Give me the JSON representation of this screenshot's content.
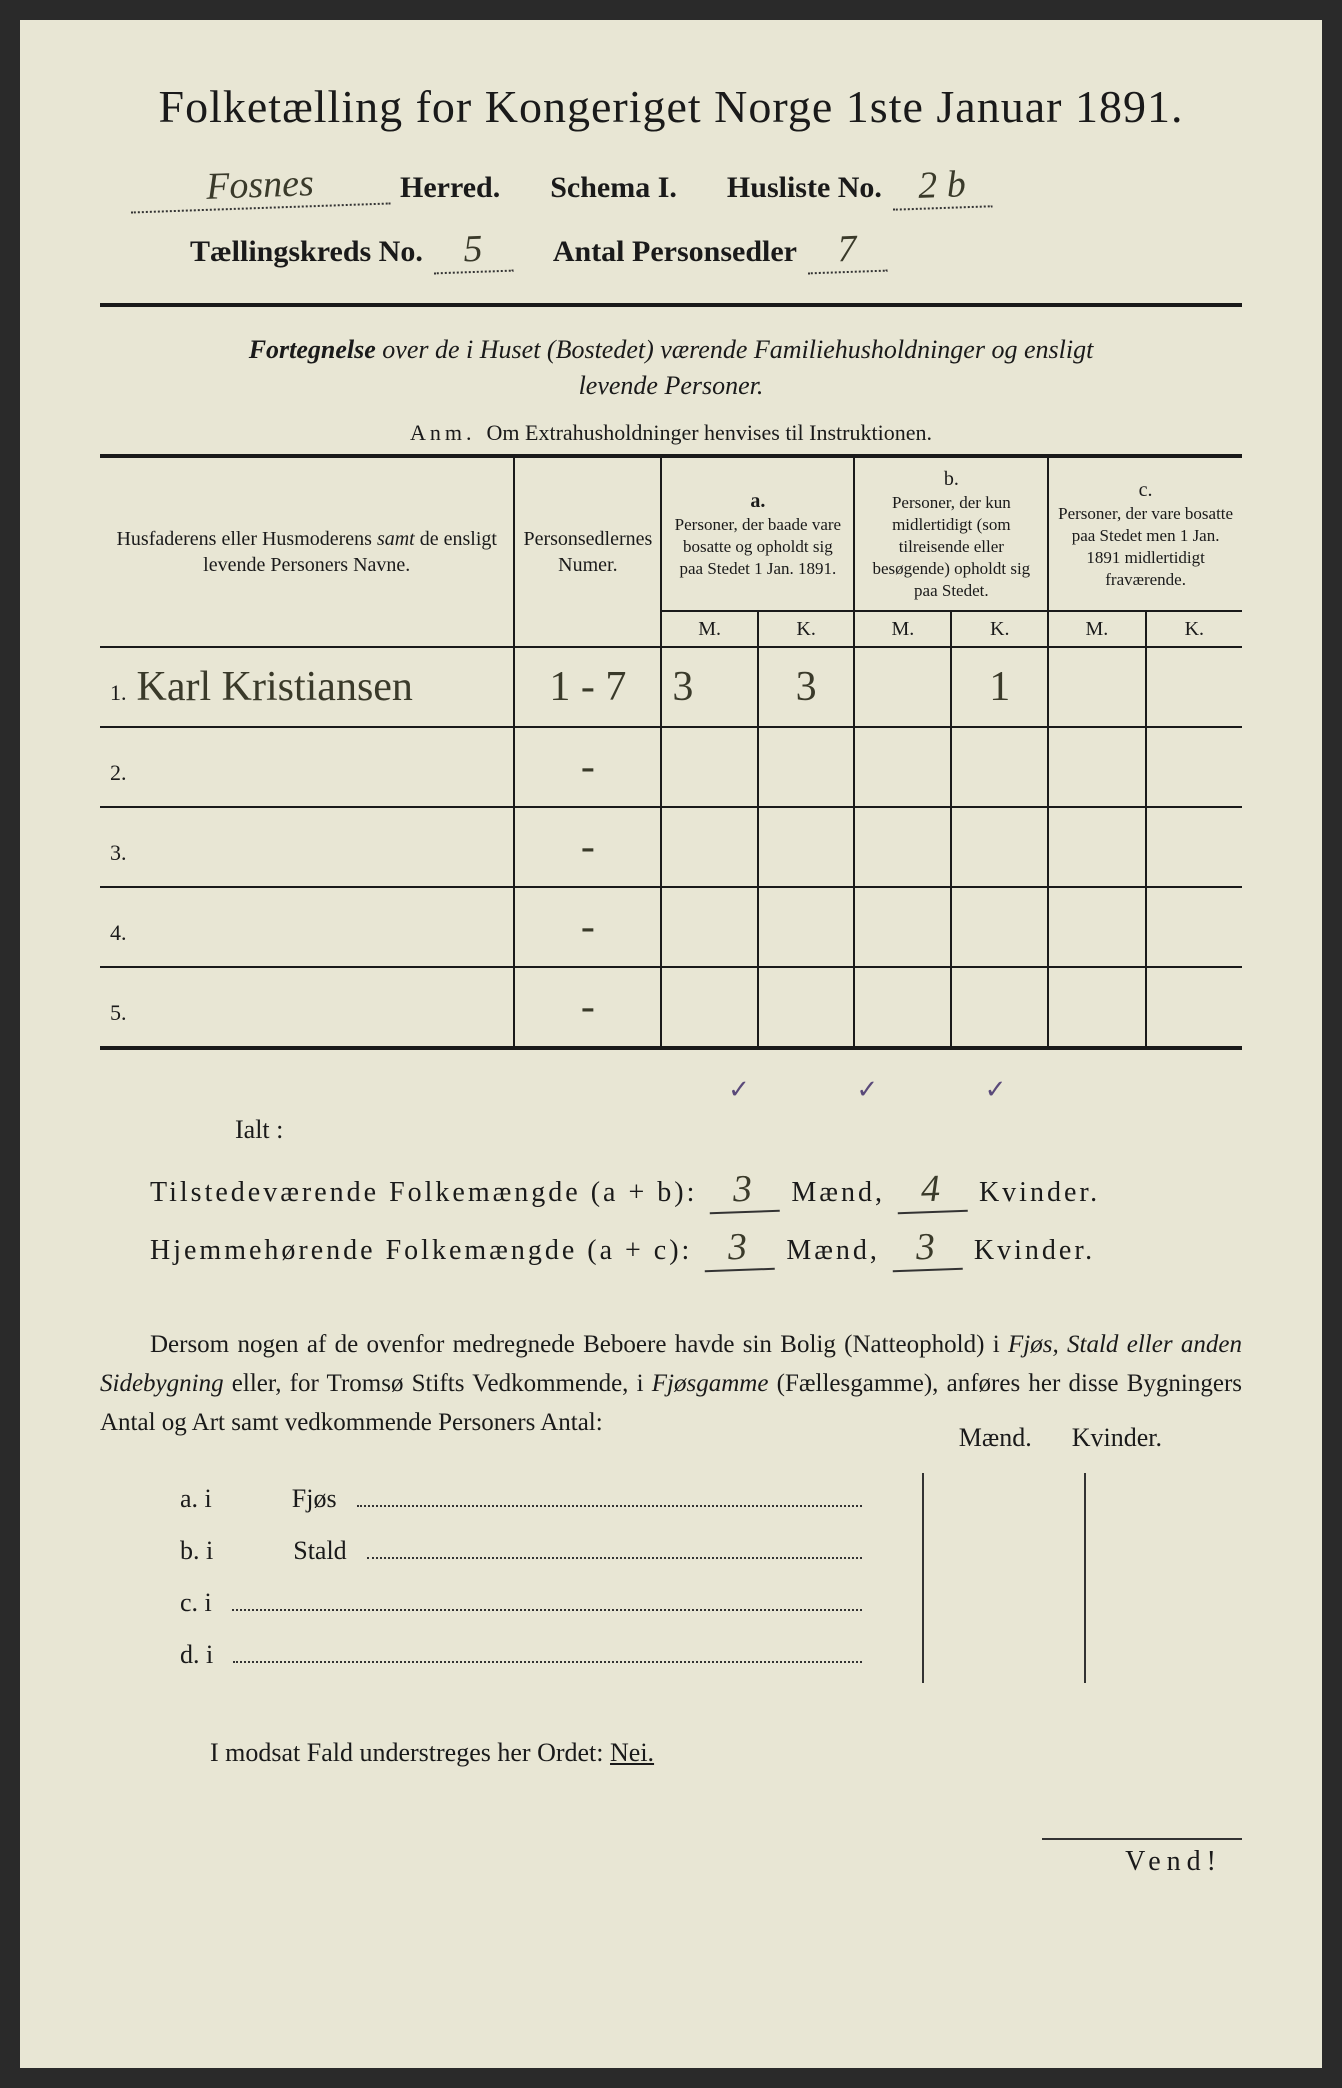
{
  "title": "Folketælling for Kongeriget Norge 1ste Januar 1891.",
  "header": {
    "herred_value": "Fosnes",
    "herred_label": "Herred.",
    "schema_label": "Schema I.",
    "husliste_label": "Husliste No.",
    "husliste_value": "2 b",
    "kreds_label": "Tællingskreds No.",
    "kreds_value": "5",
    "antal_label": "Antal Personsedler",
    "antal_value": "7"
  },
  "subtitle": "Fortegnelse over de i Huset (Bostedet) værende Familiehusholdninger og ensligt levende Personer.",
  "anm_label": "Anm.",
  "anm_text": "Om Extrahusholdninger henvises til Instruktionen.",
  "table": {
    "col1": "Husfaderens eller Husmoderens samt de ensligt levende Personers Navne.",
    "col2": "Personsedlernes Numer.",
    "col_a_label": "a.",
    "col_a": "Personer, der baade vare bosatte og opholdt sig paa Stedet 1 Jan. 1891.",
    "col_b_label": "b.",
    "col_b": "Personer, der kun midlertidigt (som tilreisende eller besøgende) opholdt sig paa Stedet.",
    "col_c_label": "c.",
    "col_c": "Personer, der vare bosatte paa Stedet men 1 Jan. 1891 midlertidigt fraværende.",
    "m": "M.",
    "k": "K.",
    "rows": [
      {
        "n": "1.",
        "name": "Karl Kristiansen",
        "num": "1 - 7",
        "am": "3",
        "ak": "3",
        "bm": "",
        "bk": "1",
        "cm": "",
        "ck": ""
      },
      {
        "n": "2.",
        "name": "",
        "num": "-",
        "am": "",
        "ak": "",
        "bm": "",
        "bk": "",
        "cm": "",
        "ck": ""
      },
      {
        "n": "3.",
        "name": "",
        "num": "-",
        "am": "",
        "ak": "",
        "bm": "",
        "bk": "",
        "cm": "",
        "ck": ""
      },
      {
        "n": "4.",
        "name": "",
        "num": "-",
        "am": "",
        "ak": "",
        "bm": "",
        "bk": "",
        "cm": "",
        "ck": ""
      },
      {
        "n": "5.",
        "name": "",
        "num": "-",
        "am": "",
        "ak": "",
        "bm": "",
        "bk": "",
        "cm": "",
        "ck": ""
      }
    ]
  },
  "ialt": "Ialt :",
  "summary": {
    "line1_label": "Tilstedeværende Folkemængde (a + b):",
    "line1_m": "3",
    "line1_k": "4",
    "line2_label": "Hjemmehørende Folkemængde (a + c):",
    "line2_m": "3",
    "line2_k": "3",
    "maend": "Mænd,",
    "kvinder": "Kvinder."
  },
  "paragraph": "Dersom nogen af de ovenfor medregnede Beboere havde sin Bolig (Natteophold) i Fjøs, Stald eller anden Sidebygning eller, for Tromsø Stifts Vedkommende, i Fjøsgamme (Fællesgamme), anføres her disse Bygningers Antal og Art samt vedkommende Personers Antal:",
  "mk": {
    "m": "Mænd.",
    "k": "Kvinder."
  },
  "sublist": {
    "a": "a.  i",
    "a_label": "Fjøs",
    "b": "b.  i",
    "b_label": "Stald",
    "c": "c.  i",
    "d": "d.  i"
  },
  "modsat": "I modsat Fald understreges her Ordet:",
  "nei": "Nei.",
  "vend": "Vend!",
  "colors": {
    "paper": "#e8e6d4",
    "ink": "#1a1a1a",
    "handwriting": "#3a3a2a",
    "tickmark": "#5a4a7a"
  }
}
